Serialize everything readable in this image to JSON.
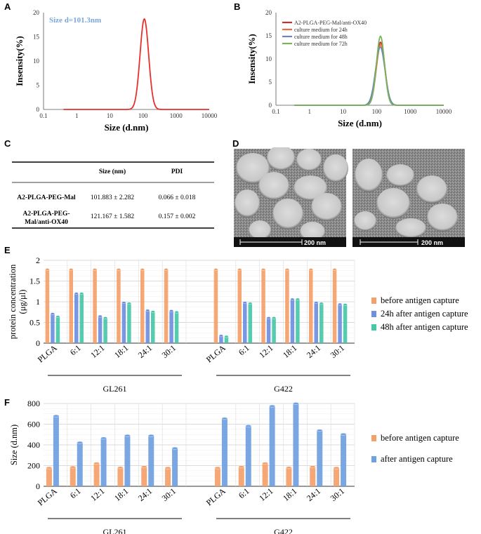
{
  "panels": {
    "A": "A",
    "B": "B",
    "C": "C",
    "D": "D",
    "E": "E",
    "F": "F"
  },
  "chart_data": [
    {
      "id": "A",
      "type": "line",
      "annotation": "Size d=101.3nm",
      "xlabel": "Size (d.nm)",
      "ylabel": "Insensity(%)",
      "xscale": "log",
      "xlim": [
        0.1,
        10000
      ],
      "ylim": [
        0,
        20
      ],
      "xticks": [
        "0.1",
        "1",
        "10",
        "100",
        "1000",
        "10000"
      ],
      "yticks": [
        "0",
        "5",
        "10",
        "15",
        "20"
      ],
      "series": [
        {
          "name": "A2-PLGA-PEG-Mal",
          "color": "#e8302a",
          "peak_x": 110,
          "peak_y": 18.7,
          "sigma_log10": 0.13,
          "x_start": 0.4,
          "x_end": 10000
        }
      ]
    },
    {
      "id": "B",
      "type": "line",
      "xlabel": "Size (d.nm)",
      "ylabel": "Insensity(%)",
      "xscale": "log",
      "xlim": [
        0.1,
        10000
      ],
      "ylim": [
        0,
        20
      ],
      "xticks": [
        "0.1",
        "1",
        "10",
        "100",
        "1000",
        "10000"
      ],
      "yticks": [
        "0",
        "5",
        "10",
        "15",
        "20"
      ],
      "series": [
        {
          "name": "A2-PLGA-PEG-Mal/anti-OX40",
          "color": "#c9302c",
          "peak_x": 130,
          "peak_y": 13.6,
          "sigma_log10": 0.13
        },
        {
          "name": "culture medium for 24h",
          "color": "#ef6b3b",
          "peak_x": 132,
          "peak_y": 13.1,
          "sigma_log10": 0.13
        },
        {
          "name": "culture medium for 48h",
          "color": "#6d86b8",
          "peak_x": 128,
          "peak_y": 12.6,
          "sigma_log10": 0.14
        },
        {
          "name": "culture medium for 72h",
          "color": "#79b35a",
          "peak_x": 130,
          "peak_y": 14.9,
          "sigma_log10": 0.12
        }
      ]
    },
    {
      "id": "E",
      "type": "bar",
      "ylabel": "protein concentration (μg/μl)",
      "ylim": [
        0,
        2
      ],
      "yticks": [
        "0",
        "0.5",
        "1",
        "1.5",
        "2"
      ],
      "groups": [
        {
          "name": "GL261",
          "categories": [
            "PLGA",
            "6:1",
            "12:1",
            "18:1",
            "24:1",
            "30:1"
          ]
        },
        {
          "name": "G422",
          "categories": [
            "PLGA",
            "6:1",
            "12:1",
            "18:1",
            "24:1",
            "30:1"
          ]
        }
      ],
      "series": [
        {
          "name": "before antigen capture",
          "color": "#f4a06a",
          "values": [
            1.78,
            1.78,
            1.78,
            1.78,
            1.78,
            1.78,
            1.78,
            1.78,
            1.78,
            1.78,
            1.78,
            1.78
          ]
        },
        {
          "name": "24h after antigen capture",
          "color": "#6f8fe0",
          "values": [
            0.71,
            1.2,
            0.65,
            0.98,
            0.79,
            0.78,
            0.18,
            0.98,
            0.61,
            1.06,
            0.98,
            0.94
          ]
        },
        {
          "name": "48h after antigen capture",
          "color": "#46c7a8",
          "values": [
            0.64,
            1.2,
            0.61,
            0.96,
            0.76,
            0.75,
            0.16,
            0.96,
            0.61,
            1.06,
            0.96,
            0.93
          ]
        }
      ]
    },
    {
      "id": "F",
      "type": "bar",
      "ylabel": "Size (d.nm)",
      "ylim": [
        0,
        800
      ],
      "yticks": [
        "0",
        "200",
        "400",
        "600",
        "800"
      ],
      "groups": [
        {
          "name": "GL261",
          "categories": [
            "PLGA",
            "6:1",
            "12:1",
            "18:1",
            "24:1",
            "30:1"
          ]
        },
        {
          "name": "G422",
          "categories": [
            "PLGA",
            "6:1",
            "12:1",
            "18:1",
            "24:1",
            "30:1"
          ]
        }
      ],
      "series": [
        {
          "name": "before antigen capture",
          "color": "#f4a06a",
          "values": [
            178,
            185,
            222,
            180,
            188,
            178,
            178,
            188,
            222,
            180,
            188,
            178
          ]
        },
        {
          "name": "after antigen capture",
          "color": "#6fa0e0",
          "values": [
            680,
            423,
            465,
            490,
            490,
            368,
            655,
            583,
            775,
            800,
            540,
            503
          ]
        }
      ]
    }
  ],
  "table": {
    "headers": [
      "",
      "Size (nm)",
      "PDI"
    ],
    "rows": [
      {
        "name": "A2-PLGA-PEG-Mal",
        "name_lines": [
          "A2-PLGA-PEG-Mal"
        ],
        "size": "101.883 ± 2.282",
        "pdi": "0.066 ± 0.018"
      },
      {
        "name": "A2-PLGA-PEG-Mal/anti-OX40",
        "name_lines": [
          "A2-PLGA-PEG-",
          "Mal/anti-OX40"
        ],
        "size": "121.167 ± 1.582",
        "pdi": "0.157 ± 0.002"
      }
    ]
  },
  "micrographs": [
    {
      "scale": "200 nm"
    },
    {
      "scale": "200 nm"
    }
  ]
}
